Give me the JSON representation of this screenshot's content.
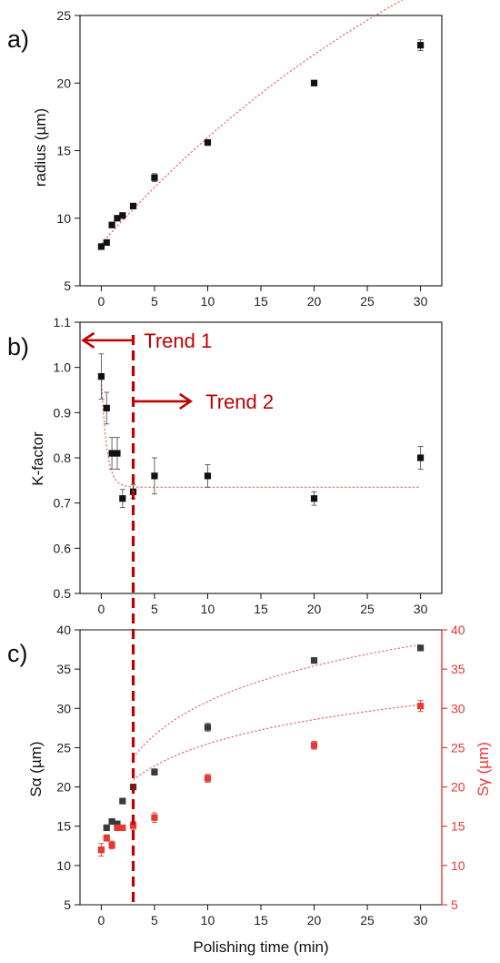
{
  "colors": {
    "black_series": "#111111",
    "dark_series": "#3a3a3a",
    "red_series": "#e53935",
    "fit_line": "#ef5350",
    "trend_red": "#c00000"
  },
  "chart_data": [
    {
      "panel_label": "a)",
      "type": "scatter",
      "ylabel": "radius (µm)",
      "xlim": [
        -2,
        32
      ],
      "xticks": [
        0,
        5,
        10,
        15,
        20,
        25,
        30
      ],
      "ylim": [
        5,
        25
      ],
      "yticks": [
        5,
        10,
        15,
        20,
        25
      ],
      "series": [
        {
          "marker": "square",
          "x": [
            0,
            0.5,
            1,
            1.5,
            2,
            3,
            5,
            10,
            20,
            30
          ],
          "y": [
            7.9,
            8.2,
            9.5,
            10.0,
            10.2,
            10.9,
            13.0,
            15.6,
            20.0,
            22.8
          ],
          "err": [
            0.15,
            0.15,
            0.15,
            0.15,
            0.15,
            0.15,
            0.3,
            0.15,
            0.15,
            0.4
          ],
          "fit": "exp_rise",
          "fit_params": {
            "A": 35.8,
            "T": 40.3,
            "y0": 8.1
          }
        }
      ]
    },
    {
      "panel_label": "b)",
      "type": "scatter",
      "ylabel": "K-factor",
      "xlim": [
        -2,
        32
      ],
      "xticks": [
        0,
        5,
        10,
        15,
        20,
        25,
        30
      ],
      "ylim": [
        0.5,
        1.1
      ],
      "yticks": [
        0.5,
        0.6,
        0.7,
        0.8,
        0.9,
        1.0,
        1.1
      ],
      "series": [
        {
          "marker": "square",
          "x": [
            0,
            0.5,
            1,
            1.5,
            2,
            3,
            5,
            10,
            20,
            30
          ],
          "y": [
            0.98,
            0.91,
            0.81,
            0.81,
            0.71,
            0.725,
            0.76,
            0.76,
            0.71,
            0.8
          ],
          "err": [
            0.05,
            0.035,
            0.035,
            0.035,
            0.02,
            0.015,
            0.04,
            0.025,
            0.015,
            0.025
          ],
          "fit": "exp_decay",
          "fit_params": {
            "y0": 0.735,
            "A": 0.245,
            "T": 0.5
          }
        }
      ],
      "annotations": [
        {
          "text": "Trend 1",
          "arrow": "left",
          "x_start": 3,
          "x_end": -1.7,
          "y": 1.06,
          "text_x": 4.0
        },
        {
          "text": "Trend 2",
          "arrow": "right",
          "x_start": 3,
          "x_end": 8.4,
          "y": 0.925,
          "text_x": 9.8
        }
      ],
      "vline": {
        "x": 3,
        "style": "dashed"
      }
    },
    {
      "panel_label": "c)",
      "type": "scatter",
      "xlabel": "Polishing time (min)",
      "ylabel": "Sα (µm)",
      "ylabel_right": "Sγ (µm)",
      "xlim": [
        -2,
        32
      ],
      "xticks": [
        0,
        5,
        10,
        15,
        20,
        25,
        30
      ],
      "ylim": [
        5,
        40
      ],
      "yticks": [
        5,
        10,
        15,
        20,
        25,
        30,
        35,
        40
      ],
      "ylim_right": [
        5,
        40
      ],
      "yticks_right": [
        5,
        10,
        15,
        20,
        25,
        30,
        35,
        40
      ],
      "series": [
        {
          "axis": "left",
          "marker": "square",
          "x": [
            0,
            0.5,
            1,
            1.5,
            2,
            3,
            5,
            10,
            20,
            30
          ],
          "y": [
            12.0,
            14.8,
            15.6,
            15.3,
            18.2,
            20.0,
            21.9,
            27.6,
            36.1,
            37.7
          ],
          "err": [
            0.3,
            0.3,
            0.3,
            0.3,
            0.3,
            0.3,
            0.4,
            0.5,
            0.3,
            0.3
          ],
          "fit": "log",
          "fit_params": {
            "a": 14.1,
            "b": 7.0,
            "x0": 0.97,
            "x_from": 3
          }
        },
        {
          "axis": "right",
          "marker": "square",
          "x": [
            0,
            0.5,
            1,
            1.5,
            2,
            3,
            5,
            10,
            20,
            30
          ],
          "y": [
            12.0,
            13.5,
            12.6,
            14.8,
            14.8,
            15.1,
            16.1,
            21.1,
            25.3,
            30.3
          ],
          "err": [
            0.8,
            0.4,
            0.5,
            0.3,
            0.3,
            0.5,
            0.6,
            0.5,
            0.5,
            0.7
          ],
          "fit": "log",
          "fit_params": {
            "a": 13.2,
            "b": 5.0,
            "x0": 1.65,
            "x_from": 3
          }
        }
      ]
    }
  ]
}
